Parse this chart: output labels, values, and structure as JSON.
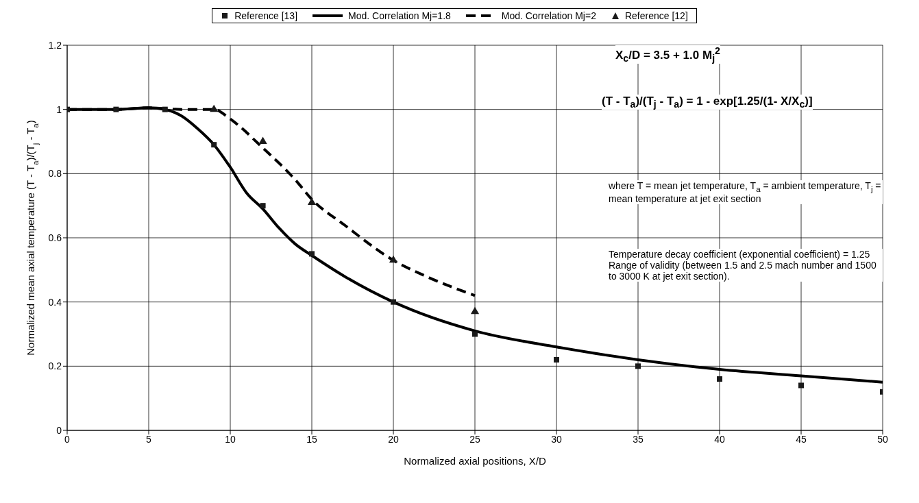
{
  "chart_data": {
    "type": "line",
    "xlabel": "Normalized axial positions, X/D",
    "ylabel": "Normalized mean axial temperature (T - T$_{a}$)/(T$_{j}$ - T$_{a}$)",
    "xlim": [
      0,
      50
    ],
    "xticks": [
      0,
      5,
      10,
      15,
      20,
      25,
      30,
      35,
      40,
      45,
      50
    ],
    "ylim": [
      0,
      1.2
    ],
    "yticks": [
      0,
      0.2,
      0.4,
      0.6,
      0.8,
      1,
      1.2
    ],
    "grid": true,
    "legend": "top",
    "series": [
      {
        "name": "Reference [13]",
        "type": "scatter",
        "marker": "square",
        "color": "#1a1a1a",
        "x": [
          0,
          3,
          6,
          9,
          12,
          15,
          20,
          25,
          30,
          35,
          40,
          45,
          50
        ],
        "values": [
          1,
          1,
          1,
          0.89,
          0.7,
          0.55,
          0.4,
          0.3,
          0.22,
          0.2,
          0.16,
          0.14,
          0.12
        ]
      },
      {
        "name": "Mod. Correlation Mj=1.8",
        "marker": "none",
        "line_style": "solid",
        "color": "#000000",
        "x": [
          0,
          3,
          5,
          6,
          7,
          8,
          9,
          10,
          11,
          12,
          13,
          14,
          15,
          17,
          20,
          25,
          30,
          35,
          40,
          45,
          50
        ],
        "values": [
          1,
          1,
          1.005,
          1,
          0.98,
          0.94,
          0.89,
          0.82,
          0.74,
          0.69,
          0.63,
          0.58,
          0.545,
          0.48,
          0.4,
          0.31,
          0.26,
          0.22,
          0.19,
          0.17,
          0.15
        ]
      },
      {
        "name": "Mod. Correlation Mj=2",
        "marker": "none",
        "line_style": "dashed",
        "color": "#000000",
        "x": [
          0,
          3,
          5,
          7,
          9,
          10,
          12,
          14,
          15,
          17,
          20,
          22,
          25
        ],
        "values": [
          1,
          1,
          1.005,
          1,
          1,
          0.97,
          0.88,
          0.78,
          0.72,
          0.64,
          0.53,
          0.48,
          0.42
        ]
      },
      {
        "name": "Reference [12]",
        "type": "scatter",
        "marker": "triangle",
        "color": "#1a1a1a",
        "x": [
          9,
          12,
          15,
          20,
          25
        ],
        "values": [
          1,
          0.9,
          0.71,
          0.53,
          0.37
        ]
      }
    ],
    "annotations": [
      "X$_{c}$/D = 3.5 + 1.0 M$_{j}$$^{2}$",
      "(T - T$_{a}$)/(T$_{j}$ - T$_{a}$) = 1 - exp[1.25/(1- X/X$_{c}$)]",
      "where T = mean jet temperature, T$_{a}$ = ambient temperature, T$_{j}$ = mean temperature at jet exit section",
      "Temperature decay coefficient (exponential coefficient) = 1.25 Range of validity (between 1.5 and 2.5 mach number and 1500 to 3000 K at jet exit section)."
    ]
  }
}
